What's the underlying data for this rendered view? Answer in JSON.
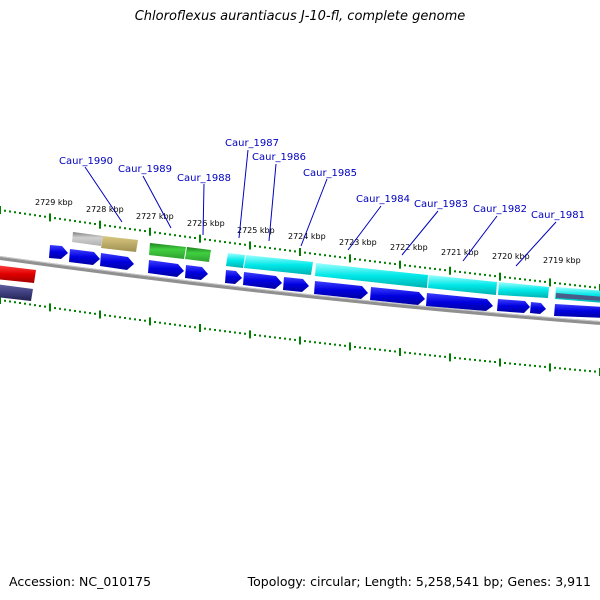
{
  "title": "Chloroflexus aurantiacus J-10-fl, complete genome",
  "footer": {
    "accession": "Accession: NC_010175",
    "info": "Topology: circular; Length: 5,258,541 bp; Genes: 3,911"
  },
  "kbp_labels": [
    "2729 kbp",
    "2728 kbp",
    "2727 kbp",
    "2726 kbp",
    "2725 kbp",
    "2724 kbp",
    "2723 kbp",
    "2722 kbp",
    "2721 kbp",
    "2720 kbp",
    "2719 kbp"
  ],
  "gene_labels": [
    "Caur_1990",
    "Caur_1989",
    "Caur_1988",
    "Caur_1987",
    "Caur_1986",
    "Caur_1985",
    "Caur_1984",
    "Caur_1983",
    "Caur_1982",
    "Caur_1981"
  ],
  "colors": {
    "backbone": "#808080",
    "cds": "#0000e0",
    "cyan_feature": "#00e0e0",
    "green_feature": "#30c030",
    "khaki_feature": "#b0a060",
    "grey_feature": "#c0c0c0",
    "red_feature": "#e00000",
    "navy_feature": "#404080",
    "tick": "#008000",
    "label": "#0000c0"
  }
}
